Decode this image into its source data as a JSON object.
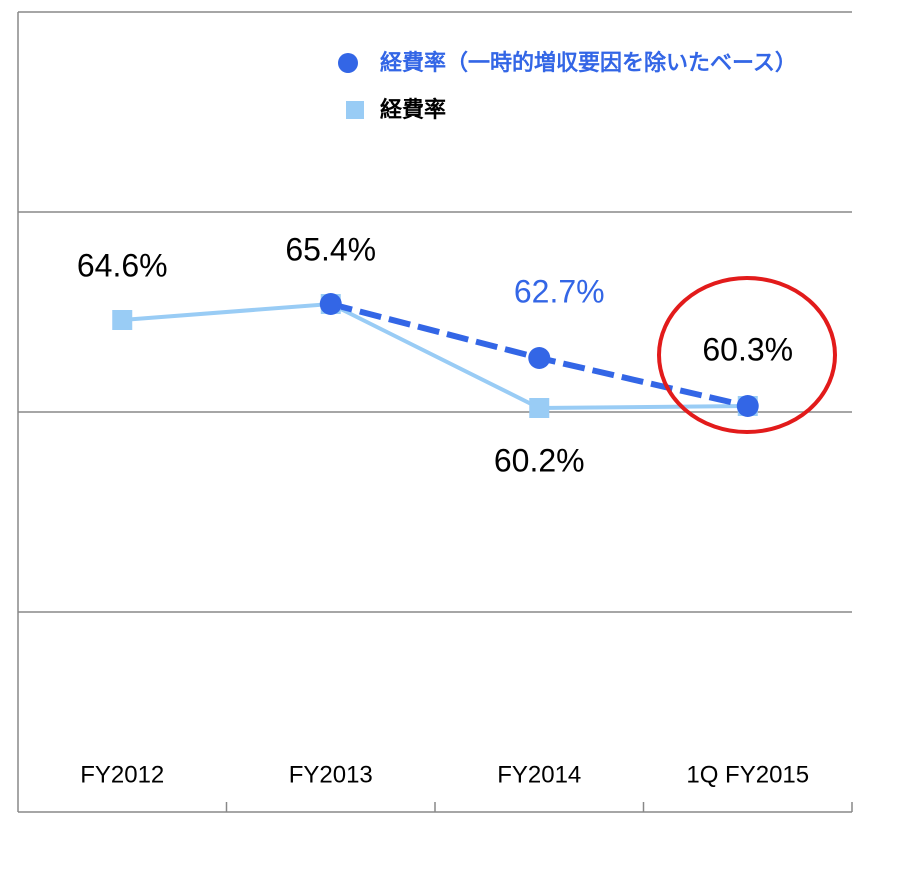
{
  "chart_data": {
    "type": "line",
    "categories": [
      "FY2012",
      "FY2013",
      "FY2014",
      "1Q FY2015"
    ],
    "series": [
      {
        "name": "経費率（一時的増収要因を除いたベース）",
        "color": "#3366e6",
        "marker": "circle",
        "dashed": true,
        "values": [
          null,
          65.4,
          62.7,
          60.3
        ],
        "value_labels": [
          null,
          null,
          "62.7%",
          null
        ]
      },
      {
        "name": "経費率",
        "color": "#99ccf5",
        "marker": "square",
        "dashed": false,
        "values": [
          64.6,
          65.4,
          60.2,
          60.3
        ],
        "value_labels": [
          "64.6%",
          "65.4%",
          "60.2%",
          "60.3%"
        ]
      }
    ],
    "ylim": [
      40,
      80
    ],
    "yticks": [
      40,
      50,
      60,
      70,
      80
    ],
    "grid": true
  }
}
